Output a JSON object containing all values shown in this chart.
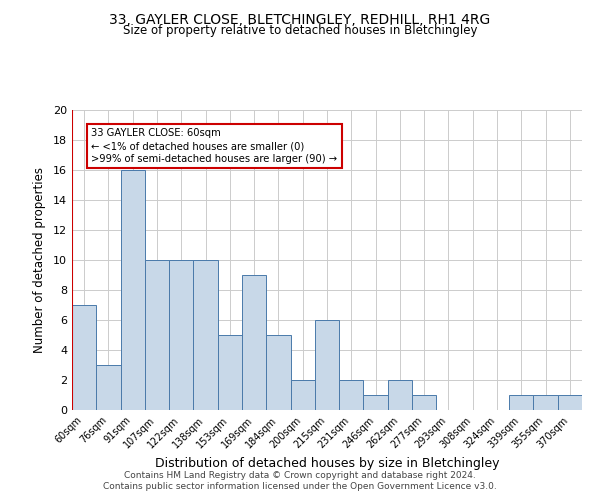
{
  "title1": "33, GAYLER CLOSE, BLETCHINGLEY, REDHILL, RH1 4RG",
  "title2": "Size of property relative to detached houses in Bletchingley",
  "xlabel": "Distribution of detached houses by size in Bletchingley",
  "ylabel": "Number of detached properties",
  "categories": [
    "60sqm",
    "76sqm",
    "91sqm",
    "107sqm",
    "122sqm",
    "138sqm",
    "153sqm",
    "169sqm",
    "184sqm",
    "200sqm",
    "215sqm",
    "231sqm",
    "246sqm",
    "262sqm",
    "277sqm",
    "293sqm",
    "308sqm",
    "324sqm",
    "339sqm",
    "355sqm",
    "370sqm"
  ],
  "values": [
    7,
    3,
    16,
    10,
    10,
    10,
    5,
    9,
    5,
    2,
    6,
    2,
    1,
    2,
    1,
    0,
    0,
    0,
    1,
    1,
    1
  ],
  "bar_color": "#c8d8e8",
  "bar_edge_color": "#4a7aaa",
  "highlight_color": "#cc0000",
  "annotation_text": "33 GAYLER CLOSE: 60sqm\n← <1% of detached houses are smaller (0)\n>99% of semi-detached houses are larger (90) →",
  "annotation_box_color": "#ffffff",
  "annotation_box_edge": "#cc0000",
  "ylim": [
    0,
    20
  ],
  "yticks": [
    0,
    2,
    4,
    6,
    8,
    10,
    12,
    14,
    16,
    18,
    20
  ],
  "footer1": "Contains HM Land Registry data © Crown copyright and database right 2024.",
  "footer2": "Contains public sector information licensed under the Open Government Licence v3.0.",
  "background_color": "#ffffff",
  "grid_color": "#cccccc"
}
